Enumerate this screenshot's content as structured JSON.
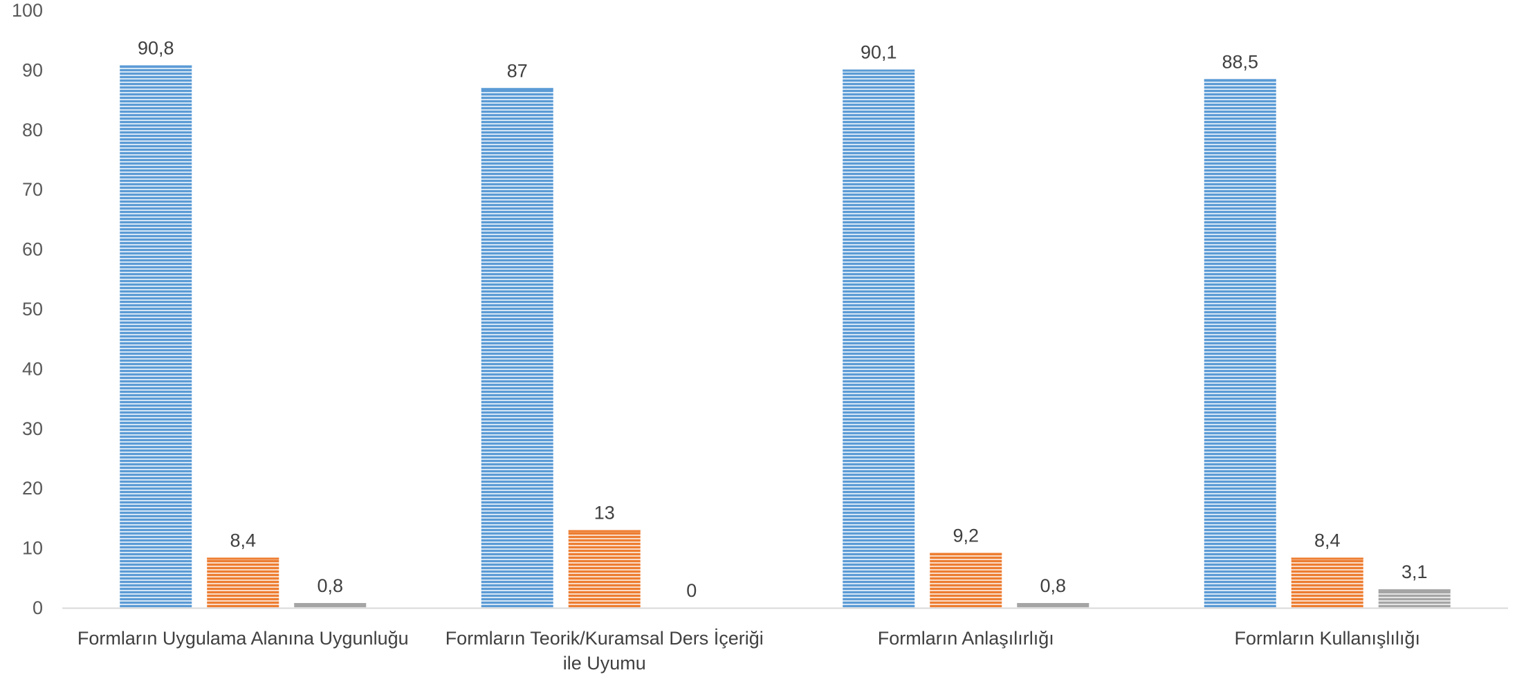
{
  "chart_data": {
    "type": "bar",
    "title": "",
    "xlabel": "",
    "ylabel": "",
    "ylim": [
      0,
      100
    ],
    "yticks": [
      0,
      10,
      20,
      30,
      40,
      50,
      60,
      70,
      80,
      90,
      100
    ],
    "grid": false,
    "legend": "none",
    "categories": [
      [
        "Formların Uygulama Alanına Uygunluğu"
      ],
      [
        "Formların Teorik/Kuramsal Ders İçeriği",
        "ile Uyumu"
      ],
      [
        "Formların Anlaşılırlığı"
      ],
      [
        "Formların Kullanışlılığı"
      ]
    ],
    "series": [
      {
        "values": [
          90.8,
          87,
          90.1,
          88.5
        ],
        "labels": [
          "90,8",
          "87",
          "90,1",
          "88,5"
        ]
      },
      {
        "values": [
          8.4,
          13,
          9.2,
          8.4
        ],
        "labels": [
          "8,4",
          "13",
          "9,2",
          "8,4"
        ]
      },
      {
        "values": [
          0.8,
          0,
          0.8,
          3.1
        ],
        "labels": [
          "0,8",
          "0",
          "0,8",
          "3,1"
        ]
      }
    ],
    "colors": {
      "series": [
        "#5B9BD5",
        "#ED7D31",
        "#A5A5A5"
      ],
      "series_stripe": [
        "#D6E6F5",
        "#FADCC8",
        "#E4E4E4"
      ],
      "axis": "#D9D9D9"
    }
  }
}
